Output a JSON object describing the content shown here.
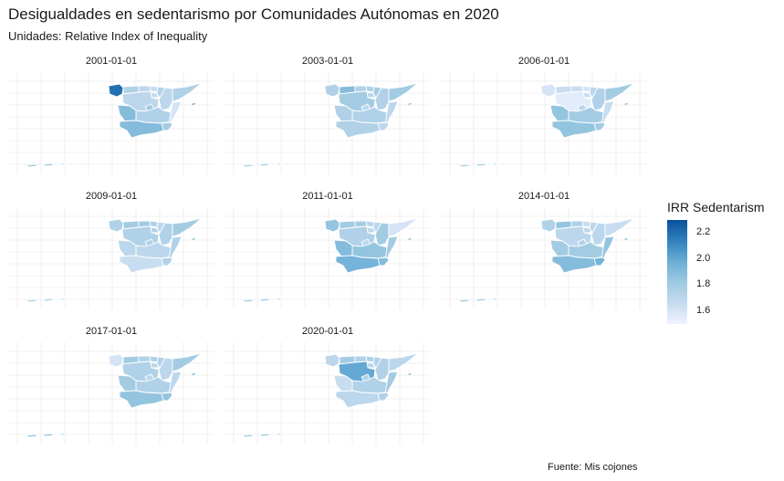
{
  "chart_data": {
    "type": "choropleth",
    "title": "Desigualdades en sedentarismo por Comunidades Autónomas en 2020",
    "subtitle": "Unidades: Relative Index of Inequality",
    "caption": "Fuente: Mis cojones",
    "legend": {
      "title": "IRR Sedentarism",
      "placement": "right",
      "ticks": [
        "2.2",
        "2.0",
        "1.8",
        "1.6"
      ],
      "tick_values": [
        2.2,
        2.0,
        1.8,
        1.6
      ],
      "range": [
        1.5,
        2.3
      ],
      "colors": [
        "#eff3ff",
        "#c6dbef",
        "#9ecae1",
        "#6baed6",
        "#3182bd",
        "#08519c"
      ]
    },
    "regions": [
      "GA",
      "AS",
      "CB",
      "PV",
      "NA",
      "RI",
      "AR",
      "CT",
      "CL",
      "MD",
      "CM",
      "VC",
      "EX",
      "AN",
      "MC",
      "IB",
      "CN"
    ],
    "facets": [
      {
        "label": "2001-01-01",
        "values": {
          "GA": 2.2,
          "AS": 1.75,
          "CB": 1.7,
          "PV": 1.65,
          "NA": 1.75,
          "RI": 1.65,
          "AR": 1.7,
          "CT": 1.75,
          "CL": 1.7,
          "MD": 1.8,
          "CM": 1.75,
          "VC": 1.6,
          "EX": 1.9,
          "AN": 1.9,
          "MC": 1.8,
          "IB": 1.9,
          "CN": 1.85
        }
      },
      {
        "label": "2003-01-01",
        "values": {
          "GA": 1.75,
          "AS": 1.9,
          "CB": 1.75,
          "PV": 1.75,
          "NA": 1.8,
          "RI": 1.7,
          "AR": 1.75,
          "CT": 1.8,
          "CL": 1.8,
          "MD": 1.7,
          "CM": 1.75,
          "VC": 1.7,
          "EX": 1.75,
          "AN": 1.75,
          "MC": 1.7,
          "IB": 1.8,
          "CN": 1.8
        }
      },
      {
        "label": "2006-01-01",
        "values": {
          "GA": 1.6,
          "AS": 1.65,
          "CB": 1.65,
          "PV": 1.6,
          "NA": 1.7,
          "RI": 1.65,
          "AR": 1.75,
          "CT": 1.8,
          "CL": 1.55,
          "MD": 1.7,
          "CM": 1.8,
          "VC": 1.65,
          "EX": 1.85,
          "AN": 1.85,
          "MC": 1.8,
          "IB": 1.8,
          "CN": 1.8
        }
      },
      {
        "label": "2009-01-01",
        "values": {
          "GA": 1.75,
          "AS": 1.8,
          "CB": 1.8,
          "PV": 1.75,
          "NA": 1.7,
          "RI": 1.75,
          "AR": 1.75,
          "CT": 1.8,
          "CL": 1.75,
          "MD": 1.75,
          "CM": 1.7,
          "VC": 1.75,
          "EX": 1.7,
          "AN": 1.65,
          "MC": 1.75,
          "IB": 1.8,
          "CN": 1.8
        }
      },
      {
        "label": "2011-01-01",
        "values": {
          "GA": 1.85,
          "AS": 1.8,
          "CB": 1.8,
          "PV": 1.7,
          "NA": 1.7,
          "RI": 1.7,
          "AR": 1.8,
          "CT": 1.6,
          "CL": 1.75,
          "MD": 1.7,
          "CM": 1.85,
          "VC": 1.8,
          "EX": 1.9,
          "AN": 1.95,
          "MC": 1.9,
          "IB": 1.8,
          "CN": 1.85
        }
      },
      {
        "label": "2014-01-01",
        "values": {
          "GA": 1.75,
          "AS": 1.85,
          "CB": 1.75,
          "PV": 1.65,
          "NA": 1.7,
          "RI": 1.7,
          "AR": 1.7,
          "CT": 1.65,
          "CL": 1.7,
          "MD": 1.75,
          "CM": 1.8,
          "VC": 1.85,
          "EX": 1.8,
          "AN": 1.9,
          "MC": 1.95,
          "IB": 1.8,
          "CN": 1.85
        }
      },
      {
        "label": "2017-01-01",
        "values": {
          "GA": 1.6,
          "AS": 1.8,
          "CB": 1.75,
          "PV": 1.75,
          "NA": 1.75,
          "RI": 1.7,
          "AR": 1.7,
          "CT": 1.8,
          "CL": 1.75,
          "MD": 1.7,
          "CM": 1.75,
          "VC": 1.7,
          "EX": 1.8,
          "AN": 1.85,
          "MC": 1.85,
          "IB": 1.85,
          "CN": 1.9
        }
      },
      {
        "label": "2020-01-01",
        "values": {
          "GA": 1.7,
          "AS": 1.8,
          "CB": 1.75,
          "PV": 1.75,
          "NA": 1.75,
          "RI": 1.7,
          "AR": 1.75,
          "CT": 1.7,
          "CL": 2.0,
          "MD": 1.75,
          "CM": 1.75,
          "VC": 1.8,
          "EX": 1.65,
          "AN": 1.7,
          "MC": 1.75,
          "IB": 1.8,
          "CN": 1.85
        }
      }
    ]
  }
}
